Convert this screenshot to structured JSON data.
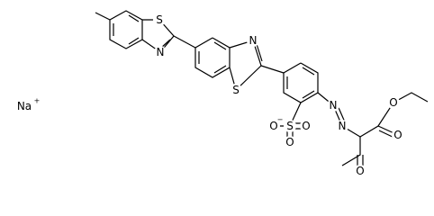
{
  "counterion": {
    "label": "Na",
    "charge": "+"
  },
  "atoms": [
    {
      "label": "S"
    },
    {
      "label": "N"
    },
    {
      "label": "N"
    },
    {
      "label": "S"
    },
    {
      "label": "S"
    },
    {
      "label": "O",
      "charge": "−"
    },
    {
      "label": "O"
    },
    {
      "label": "O"
    },
    {
      "label": "N"
    },
    {
      "label": "N"
    },
    {
      "label": "O"
    },
    {
      "label": "O"
    },
    {
      "label": "O"
    }
  ]
}
